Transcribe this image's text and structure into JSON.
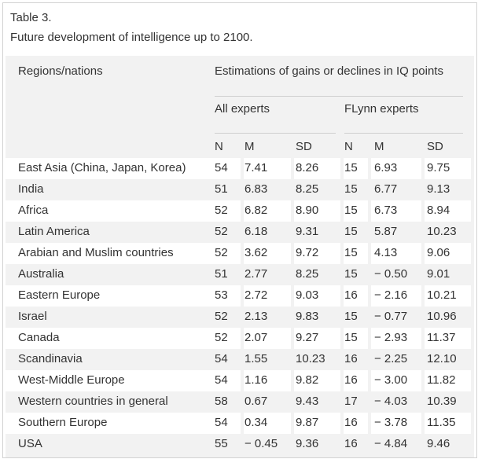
{
  "caption": {
    "label": "Table 3.",
    "title": "Future development of intelligence up to 2100."
  },
  "header": {
    "row_label": "Regions/nations",
    "group_title": "Estimations of gains or declines in IQ points",
    "subgroup_all": "All experts",
    "subgroup_flynn": "FLynn experts",
    "columns": [
      "N",
      "M",
      "SD",
      "N",
      "M",
      "SD"
    ]
  },
  "rows": [
    {
      "region": "East Asia (China, Japan, Korea)",
      "all_n": "54",
      "all_m": "7.41",
      "all_sd": "8.26",
      "fl_n": "15",
      "fl_m": "6.93",
      "fl_sd": "9.75"
    },
    {
      "region": "India",
      "all_n": "51",
      "all_m": "6.83",
      "all_sd": "8.25",
      "fl_n": "15",
      "fl_m": "6.77",
      "fl_sd": "9.13"
    },
    {
      "region": "Africa",
      "all_n": "52",
      "all_m": "6.82",
      "all_sd": "8.90",
      "fl_n": "15",
      "fl_m": "6.73",
      "fl_sd": "8.94"
    },
    {
      "region": "Latin America",
      "all_n": "52",
      "all_m": "6.18",
      "all_sd": "9.31",
      "fl_n": "15",
      "fl_m": "5.87",
      "fl_sd": "10.23"
    },
    {
      "region": "Arabian and Muslim countries",
      "all_n": "52",
      "all_m": "3.62",
      "all_sd": "9.72",
      "fl_n": "15",
      "fl_m": "4.13",
      "fl_sd": "9.06"
    },
    {
      "region": "Australia",
      "all_n": "51",
      "all_m": "2.77",
      "all_sd": "8.25",
      "fl_n": "15",
      "fl_m": "− 0.50",
      "fl_sd": "9.01"
    },
    {
      "region": "Eastern Europe",
      "all_n": "53",
      "all_m": "2.72",
      "all_sd": "9.03",
      "fl_n": "16",
      "fl_m": "− 2.16",
      "fl_sd": "10.21"
    },
    {
      "region": "Israel",
      "all_n": "52",
      "all_m": "2.13",
      "all_sd": "9.83",
      "fl_n": "15",
      "fl_m": "− 0.77",
      "fl_sd": "10.96"
    },
    {
      "region": "Canada",
      "all_n": "52",
      "all_m": "2.07",
      "all_sd": "9.27",
      "fl_n": "15",
      "fl_m": "− 2.93",
      "fl_sd": "11.37"
    },
    {
      "region": "Scandinavia",
      "all_n": "54",
      "all_m": "1.55",
      "all_sd": "10.23",
      "fl_n": "16",
      "fl_m": "− 2.25",
      "fl_sd": "12.10"
    },
    {
      "region": "West-Middle Europe",
      "all_n": "54",
      "all_m": "1.16",
      "all_sd": "9.82",
      "fl_n": "16",
      "fl_m": "− 3.00",
      "fl_sd": "11.82"
    },
    {
      "region": "Western countries in general",
      "all_n": "58",
      "all_m": "0.67",
      "all_sd": "9.43",
      "fl_n": "17",
      "fl_m": "− 4.03",
      "fl_sd": "10.39"
    },
    {
      "region": "Southern Europe",
      "all_n": "54",
      "all_m": "0.34",
      "all_sd": "9.87",
      "fl_n": "16",
      "fl_m": "− 3.78",
      "fl_sd": "11.35"
    },
    {
      "region": "USA",
      "all_n": "55",
      "all_m": "− 0.45",
      "all_sd": "9.36",
      "fl_n": "16",
      "fl_m": "− 4.84",
      "fl_sd": "9.46"
    }
  ]
}
